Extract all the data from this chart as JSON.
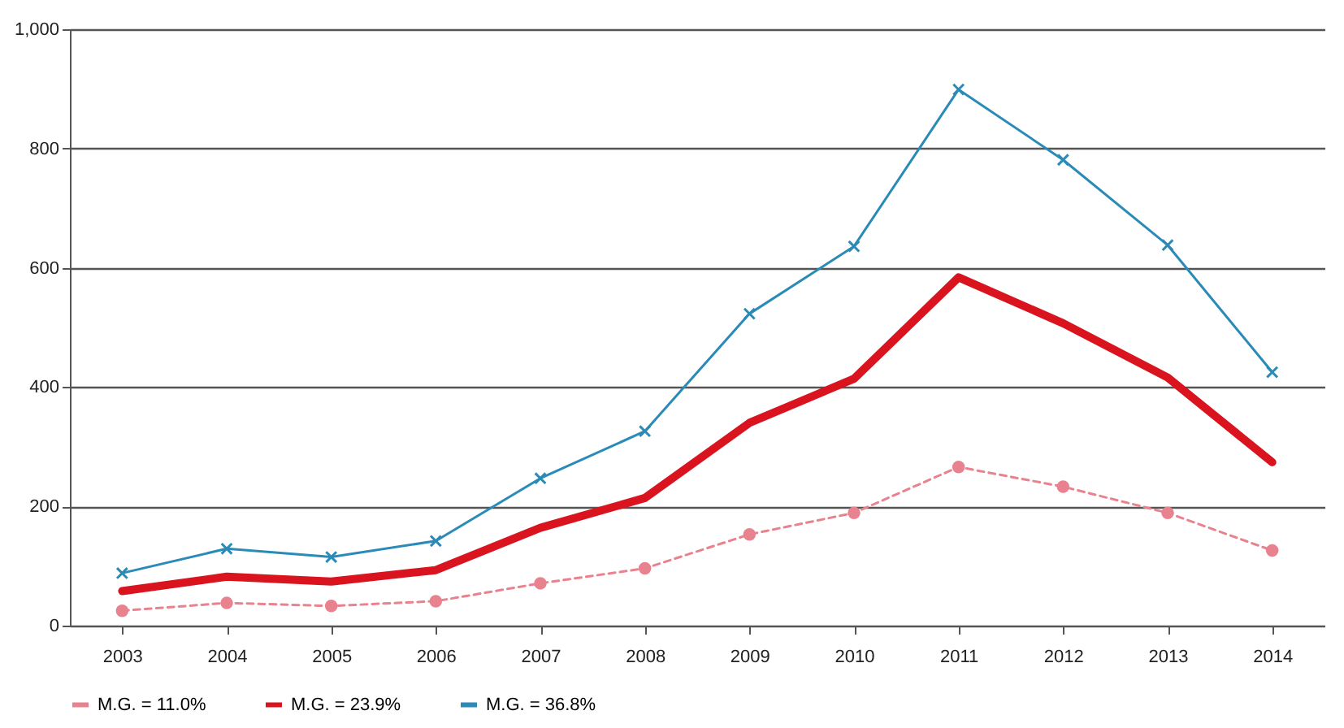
{
  "chart_data": {
    "type": "line",
    "categories": [
      "2003",
      "2004",
      "2005",
      "2006",
      "2007",
      "2008",
      "2009",
      "2010",
      "2011",
      "2012",
      "2013",
      "2014"
    ],
    "series": [
      {
        "name": "M.G. = 11.0%",
        "color": "#e8828f",
        "marker": "circle",
        "line_style": "dashed",
        "values": [
          25,
          38,
          33,
          41,
          71,
          96,
          153,
          189,
          266,
          233,
          189,
          126
        ]
      },
      {
        "name": "M.G. = 23.9%",
        "color": "#d9141e",
        "marker": "none",
        "line_style": "solid",
        "values": [
          58,
          82,
          74,
          93,
          164,
          214,
          340,
          414,
          584,
          507,
          416,
          274
        ]
      },
      {
        "name": "M.G. = 36.8%",
        "color": "#2a8ab8",
        "marker": "cross",
        "line_style": "solid",
        "values": [
          88,
          129,
          115,
          142,
          247,
          326,
          523,
          636,
          899,
          781,
          638,
          425
        ]
      }
    ],
    "ylim": [
      0,
      1000
    ],
    "yticks": [
      0,
      200,
      400,
      600,
      800,
      {
        "value": 1000,
        "label": "1,000"
      }
    ],
    "grid": "y",
    "legend": "bottom"
  }
}
